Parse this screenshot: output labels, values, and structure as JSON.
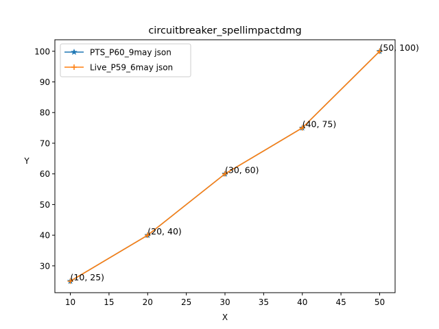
{
  "chart_data": {
    "type": "line",
    "title": "circuitbreaker_spellimpactdmg",
    "xlabel": "X",
    "ylabel": "Y",
    "x": [
      10,
      20,
      30,
      40,
      50
    ],
    "xlim": [
      8,
      52
    ],
    "ylim": [
      21.25,
      103.75
    ],
    "xticks": [
      10,
      15,
      20,
      25,
      30,
      35,
      40,
      45,
      50
    ],
    "yticks": [
      30,
      40,
      50,
      60,
      70,
      80,
      90,
      100
    ],
    "grid": false,
    "legend_position": "top-left",
    "series": [
      {
        "name": "PTS_P60_9may json",
        "values": [
          25,
          40,
          60,
          75,
          100
        ],
        "color": "#1f77b4",
        "marker": "star"
      },
      {
        "name": "Live_P59_6may json",
        "values": [
          25,
          40,
          60,
          75,
          100
        ],
        "color": "#ff7f0e",
        "marker": "plus"
      }
    ],
    "annotations": [
      "(10, 25)",
      "(20, 40)",
      "(30, 60)",
      "(40, 75)",
      "(50, 100)"
    ]
  }
}
